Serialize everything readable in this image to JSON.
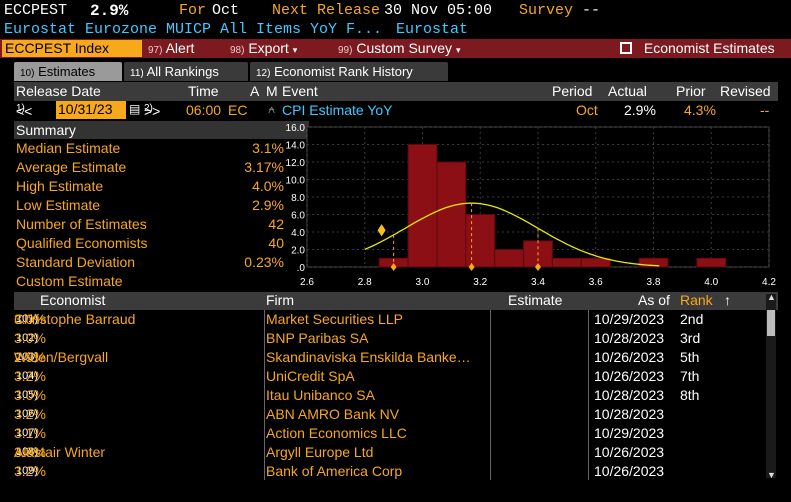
{
  "header": {
    "ticker": "ECCPEST",
    "value": "2.9%",
    "for_label": "For",
    "for_value": "Oct",
    "next_release_label": "Next Release",
    "next_release_value": "30 Nov 05:00",
    "survey_label": "Survey",
    "survey_value": "--",
    "description": "Eurostat Eurozone MUICP All Items YoY F...",
    "source": "Eurostat"
  },
  "toolbar": {
    "ticker_box": "ECCPEST Index",
    "alert_num": "97)",
    "alert_label": "Alert",
    "export_num": "98)",
    "export_label": "Export",
    "custom_num": "99)",
    "custom_label": "Custom Survey",
    "economist_estimates": "Economist Estimates"
  },
  "tabs": [
    {
      "num": "10)",
      "label": "Estimates"
    },
    {
      "num": "11)",
      "label": "All Rankings"
    },
    {
      "num": "12)",
      "label": "Economist Rank History"
    }
  ],
  "release_header": {
    "release_date": "Release Date",
    "time": "Time",
    "a": "A",
    "m": "M",
    "event": "Event",
    "period": "Period",
    "actual": "Actual",
    "prior": "Prior",
    "revised": "Revised"
  },
  "release_row": {
    "prev_num": "1)",
    "prev": "<<",
    "date": "10/31/23",
    "next_num": "2)",
    "next": ">>",
    "time": "06:00",
    "region": "EC",
    "event": "CPI Estimate YoY",
    "period": "Oct",
    "actual": "2.9%",
    "prior": "4.3%",
    "revised": "--"
  },
  "summary": {
    "title": "Summary",
    "rows": [
      {
        "label": "Median Estimate",
        "value": "3.1%"
      },
      {
        "label": "Average Estimate",
        "value": "3.17%"
      },
      {
        "label": "High Estimate",
        "value": "4.0%"
      },
      {
        "label": "Low Estimate",
        "value": "2.9%"
      },
      {
        "label": "Number of Estimates",
        "value": "42"
      },
      {
        "label": "Qualified Economists",
        "value": "40"
      },
      {
        "label": "Standard Deviation",
        "value": "0.23%"
      },
      {
        "label": "Custom Estimate",
        "value": ""
      }
    ]
  },
  "chart_data": {
    "type": "bar",
    "x_ticks": [
      "2.6",
      "2.8",
      "3.0",
      "3.2",
      "3.4",
      "3.6",
      "3.8",
      "4.0",
      "4.2"
    ],
    "y_ticks": [
      ".0",
      "2.0",
      "4.0",
      "6.0",
      "8.0",
      "10.0",
      "12.0",
      "14.0",
      "16.0"
    ],
    "xlim": [
      2.6,
      4.2
    ],
    "ylim": [
      0,
      16
    ],
    "bins": [
      {
        "x0": 2.85,
        "x1": 2.95,
        "value": 1
      },
      {
        "x0": 2.95,
        "x1": 3.05,
        "value": 14
      },
      {
        "x0": 3.05,
        "x1": 3.15,
        "value": 12
      },
      {
        "x0": 3.15,
        "x1": 3.25,
        "value": 6
      },
      {
        "x0": 3.25,
        "x1": 3.35,
        "value": 2
      },
      {
        "x0": 3.35,
        "x1": 3.45,
        "value": 3
      },
      {
        "x0": 3.45,
        "x1": 3.55,
        "value": 1
      },
      {
        "x0": 3.55,
        "x1": 3.65,
        "value": 1
      },
      {
        "x0": 3.75,
        "x1": 3.85,
        "value": 1
      },
      {
        "x0": 3.95,
        "x1": 4.05,
        "value": 1
      }
    ],
    "markers": {
      "actual": 2.9,
      "average": 3.17,
      "plus_one_sd": 3.4
    },
    "normal_curve": {
      "mean": 3.17,
      "sd": 0.23,
      "peak": 7.3
    },
    "grid": true
  },
  "table": {
    "headers": {
      "economist": "Economist",
      "firm": "Firm",
      "estimate": "Estimate",
      "as_of": "As of",
      "rank": "Rank"
    },
    "rows": [
      {
        "idx": "101)",
        "economist": "Christophe Barraud",
        "firm": "Market Securities LLP",
        "estimate": "3.0%",
        "as_of": "10/29/2023",
        "rank": "2nd"
      },
      {
        "idx": "102)",
        "economist": "",
        "firm": "BNP Paribas SA",
        "estimate": "3.0%",
        "as_of": "10/28/2023",
        "rank": "3rd"
      },
      {
        "idx": "103)",
        "economist": "Widen/Bergvall",
        "firm": "Skandinaviska Enskilda Banke…",
        "estimate": "2.9%",
        "as_of": "10/26/2023",
        "rank": "5th"
      },
      {
        "idx": "104)",
        "economist": "",
        "firm": "UniCredit SpA",
        "estimate": "3.2%",
        "as_of": "10/26/2023",
        "rank": "7th"
      },
      {
        "idx": "105)",
        "economist": "",
        "firm": "Itau Unibanco SA",
        "estimate": "3.0%",
        "as_of": "10/28/2023",
        "rank": "8th"
      },
      {
        "idx": "106)",
        "economist": "",
        "firm": "ABN AMRO Bank NV",
        "estimate": "3.2%",
        "as_of": "10/28/2023",
        "rank": ""
      },
      {
        "idx": "107)",
        "economist": "",
        "firm": "Action Economics LLC",
        "estimate": "3.1%",
        "as_of": "10/29/2023",
        "rank": ""
      },
      {
        "idx": "108)",
        "economist": "Alastair Winter",
        "firm": "Argyll Europe Ltd",
        "estimate": "3.8%",
        "as_of": "10/26/2023",
        "rank": ""
      },
      {
        "idx": "109)",
        "economist": "",
        "firm": "Bank of America Corp",
        "estimate": "3.2%",
        "as_of": "10/26/2023",
        "rank": ""
      }
    ]
  },
  "colors": {
    "orange": "#f7a81b",
    "red_bar": "#8b0f14",
    "toolbar": "#7d1a1f",
    "curve": "#e8e800"
  }
}
